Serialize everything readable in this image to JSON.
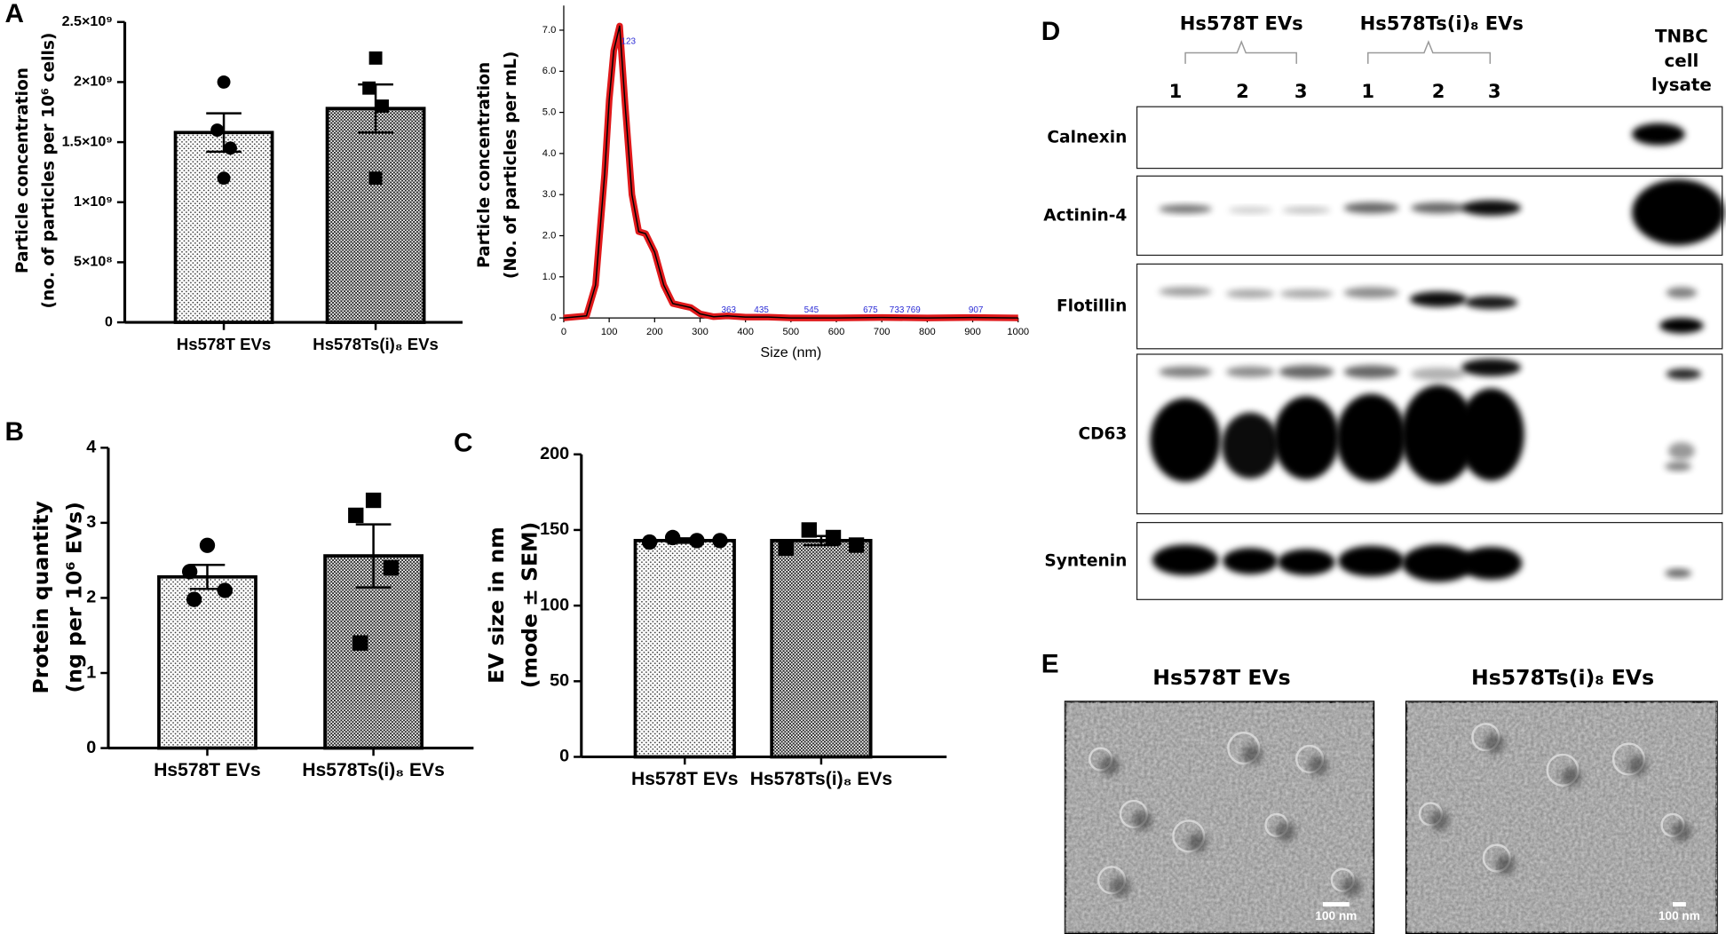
{
  "panel_labels": [
    "A",
    "B",
    "C",
    "D",
    "E"
  ],
  "chart_data": [
    {
      "type": "bar",
      "ylabel": [
        "Particle concentration",
        "(no. of particles per 10⁶ cells)"
      ],
      "categories": [
        "Hs578T EVs",
        "Hs578Ts(i)₈ EVs"
      ],
      "values": [
        1580000000,
        1780000000
      ],
      "errors": [
        160000000,
        200000000
      ],
      "points": [
        [
          2000000000,
          1600000000,
          1450000000,
          1200000000
        ],
        [
          2200000000,
          1950000000,
          1800000000,
          1200000000
        ]
      ],
      "markers": [
        "circle",
        "square"
      ],
      "ylim": [
        0,
        2500000000
      ],
      "yticks": [
        0,
        {
          "value": 500000000,
          "label": "5×10⁸"
        },
        {
          "value": 1000000000,
          "label": "1×10⁹"
        },
        {
          "value": 1500000000,
          "label": "1.5×10⁹"
        },
        {
          "value": 2000000000,
          "label": "2×10⁹"
        },
        {
          "value": 2500000000,
          "label": "2.5×10⁹"
        }
      ]
    },
    {
      "type": "line",
      "xlabel": "Size (nm)",
      "ylabel": [
        "Particle concentration",
        "(No. of particles per mL)"
      ],
      "x": [
        0,
        50,
        70,
        90,
        100,
        110,
        123,
        135,
        150,
        165,
        180,
        200,
        220,
        240,
        260,
        280,
        300,
        330,
        360,
        400,
        450,
        500,
        600,
        700,
        800,
        900,
        1000
      ],
      "values": [
        0,
        0.05,
        0.8,
        3.5,
        5.3,
        6.5,
        7.1,
        5.2,
        3.0,
        2.1,
        2.05,
        1.6,
        0.8,
        0.35,
        0.3,
        0.25,
        0.1,
        0.03,
        0.05,
        0.02,
        0.02,
        0,
        0,
        0.01,
        0,
        0.01,
        0
      ],
      "color": "#000000",
      "band_color": "#e0191b",
      "peak_labels": [
        123,
        363,
        435,
        545,
        675,
        733,
        769,
        907
      ],
      "peak_color": "#2b2bd6",
      "xlim": [
        0,
        1000
      ],
      "xticks": [
        0,
        100,
        200,
        300,
        400,
        500,
        600,
        700,
        800,
        900,
        1000
      ],
      "ylim": [
        0,
        7.6
      ],
      "yticks": [
        0,
        {
          "value": 1,
          "label": "1.0"
        },
        {
          "value": 2,
          "label": "2.0"
        },
        {
          "value": 3,
          "label": "3.0"
        },
        {
          "value": 4,
          "label": "4.0"
        },
        {
          "value": 5,
          "label": "5.0"
        },
        {
          "value": 6,
          "label": "6.0"
        },
        {
          "value": 7,
          "label": "7.0"
        }
      ]
    },
    {
      "type": "bar",
      "ylabel": [
        "Protein quantity",
        "(ng per 10⁶ EVs)"
      ],
      "categories": [
        "Hs578T EVs",
        "Hs578Ts(i)₈ EVs"
      ],
      "values": [
        2.28,
        2.56
      ],
      "errors": [
        0.16,
        0.42
      ],
      "points": [
        [
          2.7,
          2.35,
          2.1,
          1.98
        ],
        [
          3.3,
          3.1,
          2.4,
          1.4
        ]
      ],
      "markers": [
        "circle",
        "square"
      ],
      "ylim": [
        0,
        4
      ],
      "yticks": [
        0,
        1,
        2,
        3,
        4
      ]
    },
    {
      "type": "bar",
      "ylabel": [
        "EV size in nm",
        "(mode ± SEM)"
      ],
      "categories": [
        "Hs578T EVs",
        "Hs578Ts(i)₈ EVs"
      ],
      "values": [
        143,
        143
      ],
      "errors": [
        1.5,
        3
      ],
      "points": [
        [
          142,
          145,
          143,
          143
        ],
        [
          138,
          150,
          145,
          140
        ]
      ],
      "markers": [
        "circle",
        "square"
      ],
      "ylim": [
        0,
        200
      ],
      "yticks": [
        0,
        50,
        100,
        150,
        200
      ]
    }
  ],
  "blot": {
    "groups": [
      "Hs578T EVs",
      "Hs578Ts(i)₈ EVs"
    ],
    "lanes": [
      "1",
      "2",
      "3",
      "1",
      "2",
      "3"
    ],
    "control": [
      "TNBC",
      "cell",
      "lysate"
    ],
    "rows": [
      "Calnexin",
      "Actinin-4",
      "Flotillin",
      "CD63",
      "Syntenin"
    ]
  },
  "tem": {
    "titles": [
      "Hs578T EVs",
      "Hs578Ts(i)₈ EVs"
    ],
    "scale_bar": [
      "100 nm",
      "100 nm"
    ]
  }
}
